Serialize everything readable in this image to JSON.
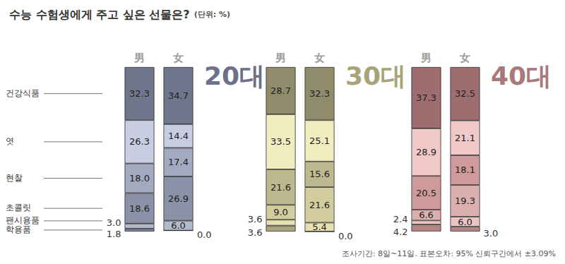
{
  "title": "수능 수험생에게 주고 싶은 선물은?",
  "unit": "(단위: %)",
  "note": "조사기간: 8일~11일. 표본오차: 95% 신뢰구간에서 ±3.09%",
  "chart_data": [
    {
      "type": "bar",
      "title": "20대",
      "color": "#6c7187",
      "categories": [
        "男",
        "女"
      ],
      "stacked": true,
      "data_labels": true,
      "tick_labels": "x",
      "grid": false,
      "ylim": [
        0,
        100
      ],
      "yticks": [
        0,
        100
      ],
      "series": [
        {
          "name": "건강식품",
          "color": "#70768b",
          "values": [
            32.3,
            34.7
          ],
          "value_labels": [
            "32.3",
            "34.7"
          ]
        },
        {
          "name": "엿",
          "color": "#c8cde2",
          "values": [
            26.3,
            14.4
          ],
          "value_labels": [
            "26.3",
            "14.4"
          ]
        },
        {
          "name": "현찰",
          "color": "#a3a9bf",
          "values": [
            18.0,
            17.4
          ],
          "value_labels": [
            "18.0",
            "17.4"
          ]
        },
        {
          "name": "초콜릿",
          "color": "#8b91a7",
          "values": [
            18.6,
            26.9
          ],
          "value_labels": [
            "18.6",
            "26.9"
          ]
        },
        {
          "name": "팬시용품",
          "color": "#b4bacd",
          "values": [
            3.0,
            6.0
          ],
          "value_labels": [
            "3.0",
            "6.0"
          ]
        },
        {
          "name": "학용품",
          "color": "#7d8398",
          "values": [
            1.8,
            0.0
          ],
          "value_labels": [
            "1.8",
            "0.0"
          ]
        }
      ]
    },
    {
      "type": "bar",
      "title": "30대",
      "color": "#a8a47a",
      "categories": [
        "男",
        "女"
      ],
      "stacked": true,
      "data_labels": true,
      "tick_labels": "x",
      "grid": false,
      "ylim": [
        0,
        100
      ],
      "yticks": [
        0,
        100
      ],
      "series": [
        {
          "name": "건강식품",
          "color": "#8f8c6c",
          "values": [
            28.7,
            32.3
          ],
          "value_labels": [
            "28.7",
            "32.3"
          ]
        },
        {
          "name": "엿",
          "color": "#f1edc0",
          "values": [
            33.5,
            25.1
          ],
          "value_labels": [
            "33.5",
            "25.1"
          ]
        },
        {
          "name": "현찰",
          "color": "#bdb88e",
          "values": [
            21.6,
            15.6
          ],
          "value_labels": [
            "21.6",
            "15.6"
          ]
        },
        {
          "name": "초콜릿",
          "color": "#d2cc9e",
          "values": [
            9.0,
            21.6
          ],
          "value_labels": [
            "9.0",
            "21.6"
          ]
        },
        {
          "name": "팬시용품",
          "color": "#e6e0b0",
          "values": [
            3.6,
            5.4
          ],
          "value_labels": [
            "3.6",
            "5.4"
          ]
        },
        {
          "name": "학용품",
          "color": "#a9a47e",
          "values": [
            3.6,
            0.0
          ],
          "value_labels": [
            "3.6",
            "0.0"
          ]
        }
      ]
    },
    {
      "type": "bar",
      "title": "40대",
      "color": "#a8787a",
      "categories": [
        "男",
        "女"
      ],
      "stacked": true,
      "data_labels": true,
      "tick_labels": "x",
      "grid": false,
      "ylim": [
        0,
        100
      ],
      "yticks": [
        0,
        100
      ],
      "series": [
        {
          "name": "건강식품",
          "color": "#9e6d70",
          "values": [
            37.3,
            32.5
          ],
          "value_labels": [
            "37.3",
            "32.5"
          ]
        },
        {
          "name": "엿",
          "color": "#f1c9c8",
          "values": [
            28.9,
            21.1
          ],
          "value_labels": [
            "28.9",
            "21.1"
          ]
        },
        {
          "name": "현찰",
          "color": "#cf9a9a",
          "values": [
            20.5,
            18.1
          ],
          "value_labels": [
            "20.5",
            "18.1"
          ]
        },
        {
          "name": "초콜릿",
          "color": "#dcb0ae",
          "values": [
            6.6,
            19.3
          ],
          "value_labels": [
            "6.6",
            "19.3"
          ]
        },
        {
          "name": "팬시용품",
          "color": "#e9c6c4",
          "values": [
            2.4,
            6.0
          ],
          "value_labels": [
            "2.4",
            "6.0"
          ]
        },
        {
          "name": "학용품",
          "color": "#b58586",
          "values": [
            4.2,
            3.0
          ],
          "value_labels": [
            "4.2",
            "3.0"
          ]
        }
      ]
    }
  ]
}
